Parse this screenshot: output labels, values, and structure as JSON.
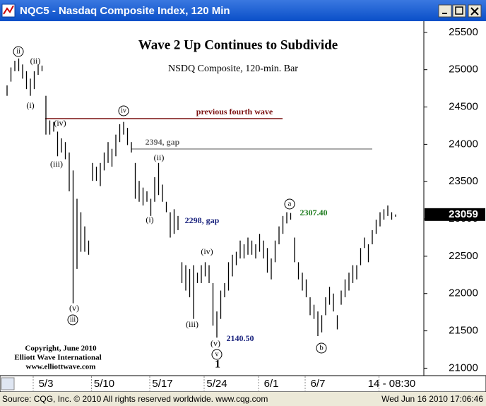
{
  "window_title": "NQC5 - Nasdaq Composite Index, 120 Min",
  "status_left": "Source: CQG, Inc. © 2010 All rights reserved worldwide.  www.cqg.com",
  "status_right": "Wed Jun 16 2010 17:06:46",
  "chart_data": {
    "type": "ohlc",
    "title": "Wave 2 Up Continues to Subdivide",
    "subtitle": "NSDQ Composite, 120-min. Bar",
    "copyright": [
      "Copyright, June 2010",
      "Elliott Wave International",
      "www.elliottwave.com"
    ],
    "categories": [
      null,
      null,
      null,
      null,
      null,
      null,
      null,
      null,
      null,
      null,
      "5/3",
      null,
      null,
      null,
      null,
      null,
      null,
      null,
      null,
      null,
      null,
      null,
      null,
      null,
      null,
      "5/10",
      null,
      null,
      null,
      null,
      null,
      null,
      null,
      null,
      null,
      null,
      null,
      null,
      null,
      null,
      "5/17",
      null,
      null,
      null,
      null,
      null,
      null,
      null,
      null,
      null,
      null,
      null,
      null,
      null,
      "5/24",
      null,
      null,
      null,
      null,
      null,
      null,
      null,
      null,
      null,
      null,
      null,
      null,
      null,
      "6/1",
      null,
      null,
      null,
      null,
      null,
      null,
      null,
      null,
      null,
      null,
      null,
      "6/7",
      null,
      null,
      null,
      null,
      null,
      null,
      null,
      null,
      null,
      null,
      null,
      null,
      null,
      null,
      null,
      null,
      null,
      null,
      "14 - 08:30",
      null
    ],
    "high": [
      24790,
      25030,
      25120,
      25150,
      25070,
      24980,
      24880,
      24980,
      25070,
      25055,
      24650,
      24320,
      24300,
      24170,
      24080,
      24030,
      23890,
      23650,
      23270,
      23090,
      22900,
      22710,
      23750,
      23700,
      23750,
      23890,
      24030,
      23940,
      24130,
      24270,
      24300,
      24220,
      24030,
      23750,
      23510,
      23420,
      23370,
      23270,
      23560,
      23750,
      23460,
      23230,
      23090,
      23130,
      23040,
      22420,
      22380,
      22330,
      22380,
      22280,
      22380,
      22420,
      22380,
      22140,
      21760,
      22040,
      22140,
      22420,
      22520,
      22560,
      22710,
      22660,
      22750,
      22710,
      22660,
      22800,
      22710,
      22610,
      22470,
      22710,
      22900,
      23040,
      23090,
      23080,
      22750,
      22420,
      22280,
      22190,
      21950,
      21850,
      21760,
      21710,
      21950,
      22090,
      22000,
      21710,
      22040,
      22190,
      22280,
      22380,
      22380,
      22610,
      22750,
      22660,
      22850,
      22990,
      23090,
      23130,
      23180,
      23090,
      23060
    ],
    "low": [
      24650,
      24840,
      24980,
      24980,
      24880,
      24740,
      24650,
      24740,
      24930,
      24980,
      24130,
      24130,
      24170,
      23840,
      23890,
      23800,
      23370,
      21870,
      22330,
      22560,
      22560,
      22520,
      23510,
      23510,
      23440,
      23650,
      23750,
      23700,
      23840,
      24030,
      24130,
      23990,
      23890,
      23270,
      23230,
      23180,
      23230,
      23040,
      23230,
      23320,
      23230,
      23090,
      22750,
      22800,
      22850,
      22140,
      22040,
      21950,
      21660,
      22140,
      22140,
      22230,
      22140,
      21570,
      21410,
      21660,
      21950,
      22040,
      22230,
      22380,
      22470,
      22470,
      22520,
      22520,
      22470,
      22560,
      22470,
      22280,
      22190,
      22420,
      22660,
      22800,
      22940,
      22990,
      22420,
      22190,
      22040,
      21950,
      21710,
      21660,
      21430,
      21480,
      21710,
      21850,
      21760,
      21520,
      21850,
      21950,
      22040,
      22140,
      22190,
      22380,
      22610,
      22420,
      22660,
      22800,
      22900,
      22990,
      23040,
      22990,
      23030
    ],
    "color": "#000000",
    "ylim": [
      20900,
      25650
    ],
    "yticks": [
      21000,
      21500,
      22000,
      22500,
      23000,
      23500,
      24000,
      24500,
      25000,
      25500
    ],
    "last_price": 23059,
    "annotations": [
      "ii",
      "(ii)",
      "(i)",
      "(iv)",
      "(iii)",
      "(v)",
      "iii",
      "iv",
      "(ii)",
      "(i)",
      "2298, gap",
      "(iv)",
      "(iii)",
      "(v)",
      "v",
      "1",
      "2140.50",
      "a",
      "2307.40",
      "b",
      "previous fourth wave",
      "2394, gap"
    ]
  }
}
